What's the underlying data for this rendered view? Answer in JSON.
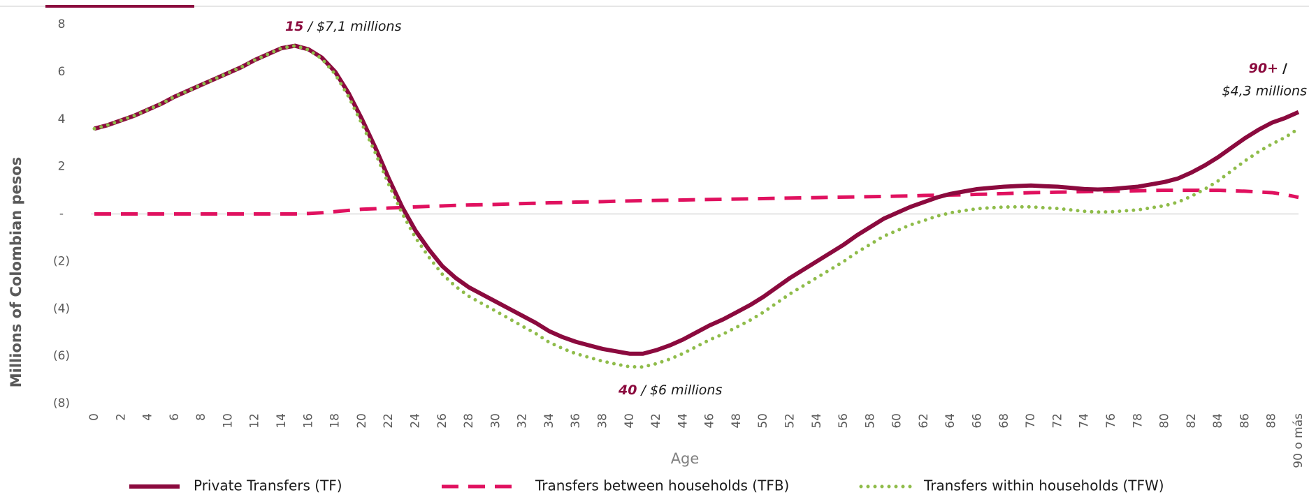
{
  "chart_data": {
    "type": "line",
    "x_label": "Age",
    "y_label": "Millions of  Colombian pesos",
    "categories": [
      "0",
      null,
      "2",
      null,
      "4",
      null,
      "6",
      null,
      "8",
      null,
      "10",
      null,
      "12",
      null,
      "14",
      null,
      "16",
      null,
      "18",
      null,
      "20",
      null,
      "22",
      null,
      "24",
      null,
      "26",
      null,
      "28",
      null,
      "30",
      null,
      "32",
      null,
      "34",
      null,
      "36",
      null,
      "38",
      null,
      "40",
      null,
      "42",
      null,
      "44",
      null,
      "46",
      null,
      "48",
      null,
      "50",
      null,
      "52",
      null,
      "54",
      null,
      "56",
      null,
      "58",
      null,
      "60",
      null,
      "62",
      null,
      "64",
      null,
      "66",
      null,
      "68",
      null,
      "70",
      null,
      "72",
      null,
      "74",
      null,
      "76",
      null,
      "78",
      null,
      "80",
      null,
      "82",
      null,
      "84",
      null,
      "86",
      null,
      "88",
      null,
      "90 o más"
    ],
    "ylim": [
      -8,
      8
    ],
    "yticks": [
      8,
      6,
      4,
      2,
      {
        "value": 0,
        "label": "-"
      },
      {
        "value": -2,
        "label": "(2)"
      },
      {
        "value": -4,
        "label": "(4)"
      },
      {
        "value": -6,
        "label": "(6)"
      },
      {
        "value": -8,
        "label": "(8)"
      }
    ],
    "zero_line": true,
    "legend": "bottom",
    "series": [
      {
        "name": "Private Transfers (TF)",
        "color": "#8b0a3e",
        "style": "solid",
        "values": [
          3.6,
          3.75,
          3.95,
          4.15,
          4.4,
          4.65,
          4.95,
          5.2,
          5.45,
          5.7,
          5.95,
          6.2,
          6.5,
          6.75,
          7.0,
          7.1,
          6.95,
          6.6,
          6.0,
          5.1,
          4.0,
          2.8,
          1.5,
          0.3,
          -0.7,
          -1.5,
          -2.2,
          -2.7,
          -3.1,
          -3.4,
          -3.7,
          -4.0,
          -4.3,
          -4.6,
          -4.95,
          -5.2,
          -5.4,
          -5.55,
          -5.7,
          -5.8,
          -5.9,
          -5.9,
          -5.75,
          -5.55,
          -5.3,
          -5.0,
          -4.7,
          -4.45,
          -4.15,
          -3.85,
          -3.5,
          -3.1,
          -2.7,
          -2.35,
          -2.0,
          -1.65,
          -1.3,
          -0.9,
          -0.55,
          -0.2,
          0.05,
          0.3,
          0.5,
          0.7,
          0.85,
          0.95,
          1.05,
          1.1,
          1.15,
          1.18,
          1.2,
          1.17,
          1.15,
          1.1,
          1.05,
          1.03,
          1.05,
          1.1,
          1.15,
          1.25,
          1.35,
          1.5,
          1.75,
          2.05,
          2.4,
          2.8,
          3.2,
          3.55,
          3.85,
          4.05,
          4.3
        ]
      },
      {
        "name": "Transfers between households (TFB)",
        "color": "#e0115f",
        "style": "dashed",
        "values": [
          0,
          0,
          0,
          0,
          0,
          0,
          0,
          0,
          0,
          0,
          0,
          0,
          0,
          0,
          0,
          0,
          0.02,
          0.05,
          0.1,
          0.15,
          0.2,
          0.22,
          0.25,
          0.27,
          0.3,
          0.32,
          0.34,
          0.36,
          0.38,
          0.39,
          0.4,
          0.42,
          0.44,
          0.45,
          0.47,
          0.48,
          0.5,
          0.51,
          0.52,
          0.54,
          0.55,
          0.56,
          0.57,
          0.58,
          0.59,
          0.6,
          0.61,
          0.62,
          0.63,
          0.64,
          0.65,
          0.66,
          0.67,
          0.68,
          0.69,
          0.7,
          0.71,
          0.72,
          0.73,
          0.74,
          0.75,
          0.76,
          0.78,
          0.79,
          0.8,
          0.81,
          0.83,
          0.84,
          0.86,
          0.88,
          0.9,
          0.91,
          0.92,
          0.93,
          0.94,
          0.95,
          0.96,
          0.97,
          0.98,
          0.99,
          1.0,
          1.0,
          1.0,
          1.0,
          1.0,
          0.98,
          0.96,
          0.93,
          0.9,
          0.82,
          0.7
        ]
      },
      {
        "name": "Transfers within households (TFW)",
        "color": "#8fbc4a",
        "style": "dotted",
        "values": [
          3.6,
          3.75,
          3.95,
          4.15,
          4.4,
          4.65,
          4.95,
          5.2,
          5.45,
          5.7,
          5.95,
          6.2,
          6.5,
          6.75,
          7.0,
          7.1,
          6.93,
          6.55,
          5.9,
          4.95,
          3.8,
          2.58,
          1.25,
          0.03,
          -1.0,
          -1.82,
          -2.54,
          -3.06,
          -3.48,
          -3.79,
          -4.1,
          -4.42,
          -4.74,
          -5.05,
          -5.42,
          -5.68,
          -5.9,
          -6.06,
          -6.22,
          -6.34,
          -6.45,
          -6.46,
          -6.32,
          -6.13,
          -5.89,
          -5.6,
          -5.31,
          -5.07,
          -4.78,
          -4.49,
          -4.15,
          -3.76,
          -3.37,
          -3.03,
          -2.69,
          -2.35,
          -2.01,
          -1.62,
          -1.28,
          -0.94,
          -0.7,
          -0.46,
          -0.28,
          -0.09,
          0.05,
          0.14,
          0.22,
          0.26,
          0.29,
          0.3,
          0.3,
          0.26,
          0.23,
          0.17,
          0.11,
          0.08,
          0.09,
          0.13,
          0.17,
          0.26,
          0.35,
          0.5,
          0.75,
          1.05,
          1.4,
          1.82,
          2.24,
          2.62,
          2.95,
          3.23,
          3.6
        ]
      }
    ],
    "annotations": [
      {
        "label": "15",
        "text": "/ $7,1 millions"
      },
      {
        "label": "40",
        "text": "/ $6 millions"
      },
      {
        "label": "90+",
        "text": "/",
        "text2": "$4,3 millions"
      }
    ]
  }
}
